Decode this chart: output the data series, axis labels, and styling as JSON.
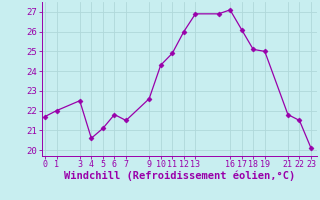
{
  "x": [
    0,
    1,
    3,
    4,
    5,
    6,
    7,
    9,
    10,
    11,
    12,
    13,
    15,
    16,
    17,
    18,
    19,
    21,
    22,
    23
  ],
  "y": [
    21.7,
    22.0,
    22.5,
    20.6,
    21.1,
    21.8,
    21.5,
    22.6,
    24.3,
    24.9,
    26.0,
    26.9,
    26.9,
    27.1,
    26.1,
    25.1,
    25.0,
    21.8,
    21.5,
    20.1
  ],
  "xticks": [
    0,
    1,
    3,
    4,
    5,
    6,
    7,
    9,
    10,
    11,
    12,
    13,
    16,
    17,
    18,
    19,
    21,
    22,
    23
  ],
  "yticks": [
    20,
    21,
    22,
    23,
    24,
    25,
    26,
    27
  ],
  "ylim": [
    19.7,
    27.5
  ],
  "xlim": [
    -0.3,
    23.5
  ],
  "xlabel": "Windchill (Refroidissement éolien,°C)",
  "line_color": "#9900aa",
  "marker_color": "#9900aa",
  "bg_color": "#c8eef0",
  "grid_color": "#b0d8da",
  "xlabel_fontsize": 7.5,
  "ytick_fontsize": 6.5,
  "xtick_fontsize": 6.0
}
